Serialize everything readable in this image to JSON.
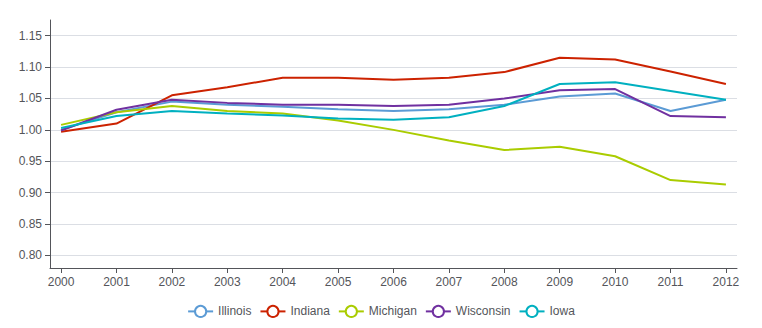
{
  "chart_data": {
    "type": "line",
    "x": [
      2000,
      2001,
      2002,
      2003,
      2004,
      2005,
      2006,
      2007,
      2008,
      2009,
      2010,
      2011,
      2012
    ],
    "xlim": [
      1999.8,
      2012.2
    ],
    "xticks": [
      2000,
      2001,
      2002,
      2003,
      2004,
      2005,
      2006,
      2007,
      2008,
      2009,
      2010,
      2011,
      2012
    ],
    "ylim": [
      0.78,
      1.175
    ],
    "yticks": [
      {
        "value": 0.8,
        "label": "0.80"
      },
      {
        "value": 0.85,
        "label": "0.85"
      },
      {
        "value": 0.9,
        "label": "0.90"
      },
      {
        "value": 0.95,
        "label": "0.95"
      },
      {
        "value": 1.0,
        "label": "1.00"
      },
      {
        "value": 1.05,
        "label": "1.05"
      },
      {
        "value": 1.1,
        "label": "1.10"
      },
      {
        "value": 1.15,
        "label": "1.15"
      }
    ],
    "grid": true,
    "legend": "bottom",
    "series": [
      {
        "name": "Illinois",
        "color": "#5B9BD5",
        "values": [
          1.0,
          1.028,
          1.045,
          1.04,
          1.037,
          1.033,
          1.03,
          1.033,
          1.04,
          1.053,
          1.058,
          1.03,
          1.048
        ]
      },
      {
        "name": "Indiana",
        "color": "#CC2200",
        "values": [
          0.997,
          1.01,
          1.055,
          1.068,
          1.083,
          1.083,
          1.08,
          1.083,
          1.092,
          1.115,
          1.112,
          1.093,
          1.073
        ]
      },
      {
        "name": "Michigan",
        "color": "#AACC00",
        "values": [
          1.008,
          1.028,
          1.038,
          1.03,
          1.026,
          1.015,
          1.0,
          0.983,
          0.968,
          0.973,
          0.958,
          0.92,
          0.913
        ]
      },
      {
        "name": "Wisconsin",
        "color": "#7030A0",
        "values": [
          0.999,
          1.032,
          1.048,
          1.043,
          1.04,
          1.04,
          1.038,
          1.04,
          1.05,
          1.063,
          1.065,
          1.022,
          1.02
        ]
      },
      {
        "name": "Iowa",
        "color": "#00B0C0",
        "values": [
          1.003,
          1.022,
          1.03,
          1.026,
          1.023,
          1.018,
          1.016,
          1.02,
          1.038,
          1.073,
          1.076,
          1.062,
          1.048
        ]
      }
    ]
  }
}
